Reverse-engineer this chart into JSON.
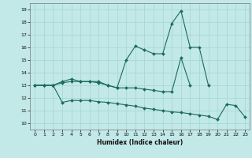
{
  "xlabel": "Humidex (Indice chaleur)",
  "bg_color": "#c2e8e8",
  "grid_color": "#a8d8d8",
  "line_color": "#1a6b5a",
  "ylim": [
    9.5,
    19.5
  ],
  "xlim": [
    -0.5,
    23.5
  ],
  "yticks": [
    10,
    11,
    12,
    13,
    14,
    15,
    16,
    17,
    18,
    19
  ],
  "xticks": [
    0,
    1,
    2,
    3,
    4,
    5,
    6,
    7,
    8,
    9,
    10,
    11,
    12,
    13,
    14,
    15,
    16,
    17,
    18,
    19,
    20,
    21,
    22,
    23
  ],
  "series1": [
    13.0,
    13.0,
    13.0,
    13.2,
    13.3,
    13.3,
    13.3,
    13.3,
    13.0,
    12.8,
    15.0,
    16.1,
    15.8,
    15.5,
    15.5,
    17.9,
    18.9,
    16.0,
    16.0,
    13.0,
    null,
    null,
    null,
    null
  ],
  "series2": [
    13.0,
    13.0,
    13.0,
    13.3,
    13.5,
    13.3,
    13.3,
    13.2,
    13.0,
    12.8,
    12.8,
    12.8,
    12.7,
    12.6,
    12.5,
    12.5,
    15.2,
    13.0,
    null,
    null,
    null,
    null,
    null,
    null
  ],
  "series3": [
    13.0,
    13.0,
    13.0,
    11.65,
    11.8,
    11.8,
    11.8,
    11.7,
    11.65,
    11.55,
    11.45,
    11.35,
    11.2,
    11.1,
    11.0,
    10.9,
    10.85,
    10.75,
    10.65,
    10.55,
    10.3,
    11.5,
    11.4,
    10.5
  ]
}
